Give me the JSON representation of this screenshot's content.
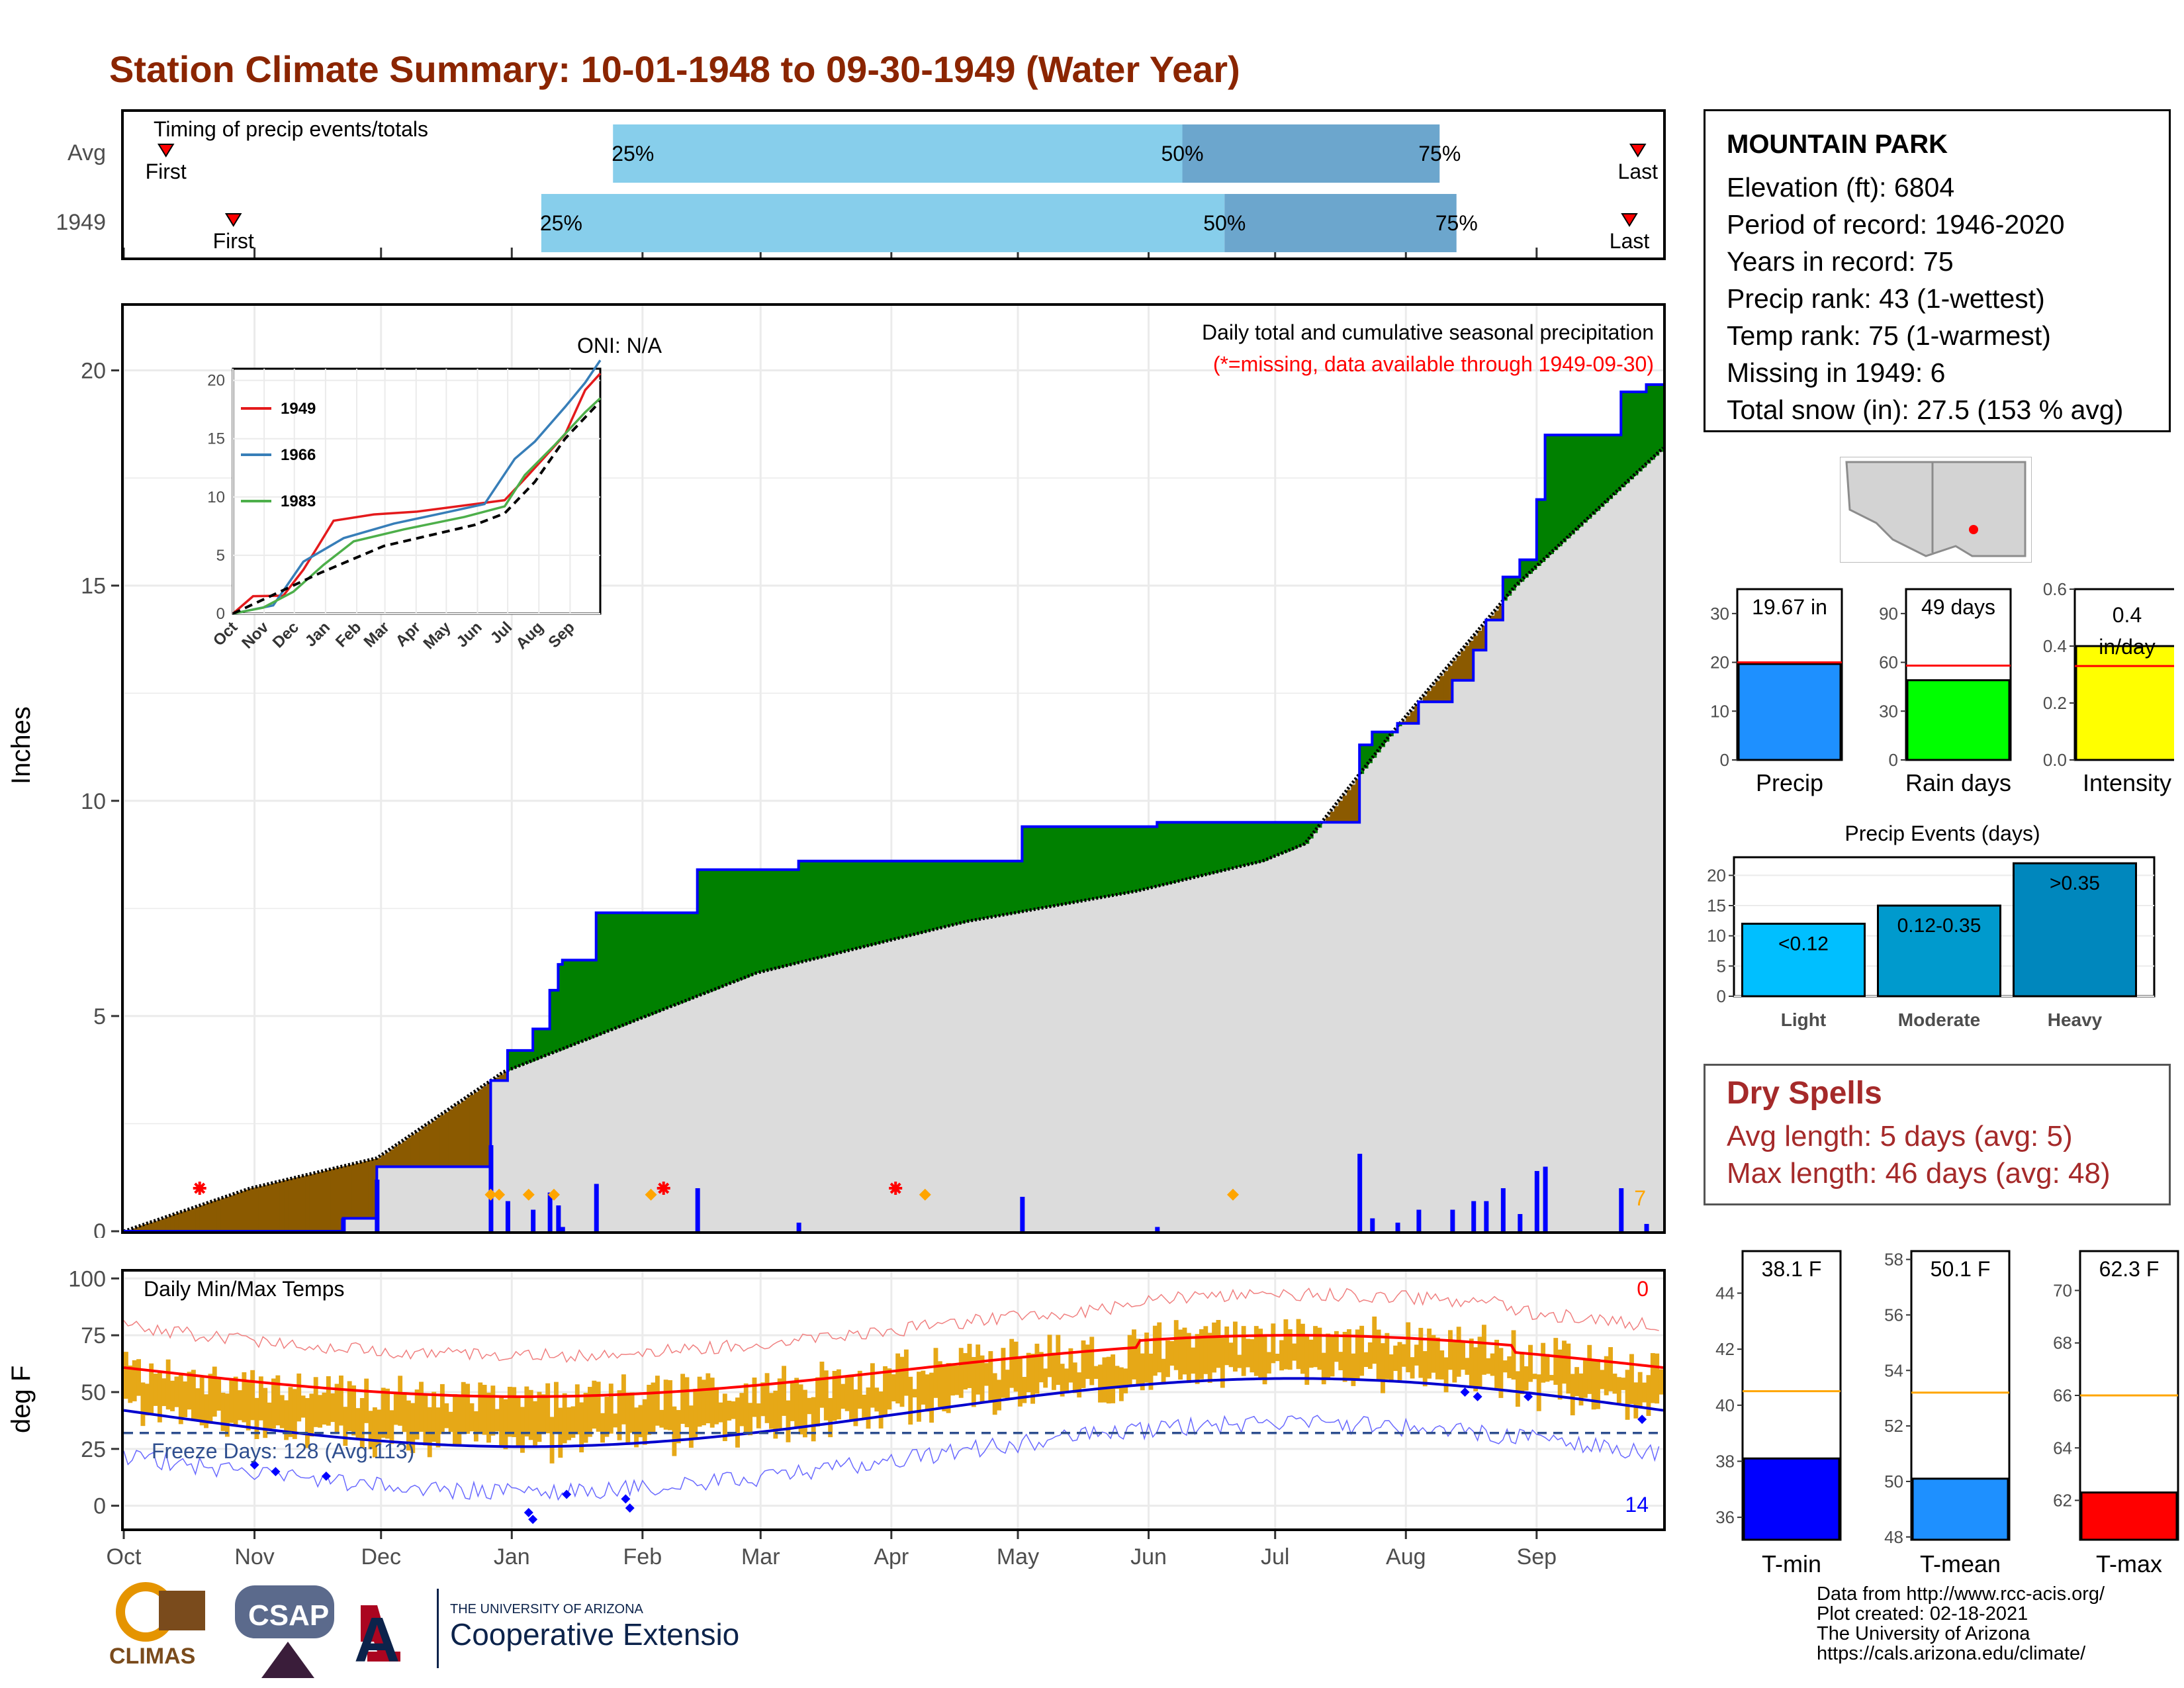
{
  "title": "Station Climate Summary: 10-01-1948 to 09-30-1949 (Water Year)",
  "timing": {
    "label": "Timing of precip events/totals",
    "rows": [
      {
        "name": "Avg",
        "first_doy": 10,
        "last_doy": 359,
        "p25_doy": 116,
        "p50_doy": 251,
        "p75_doy": 312
      },
      {
        "name": "1949",
        "first_doy": 26,
        "last_doy": 357,
        "p25_doy": 99,
        "p50_doy": 261,
        "p75_doy": 316
      }
    ],
    "first_label": "First",
    "last_label": "Last",
    "pct_labels": [
      "25%",
      "50%",
      "75%"
    ],
    "colors": {
      "light": "#87ceeb",
      "dark": "#6ca6cd",
      "marker": "#ff0000"
    }
  },
  "precip": {
    "oni_label": "ONI: N/A",
    "right_title": "Daily total and cumulative seasonal precipitation",
    "missing_note": "(*=missing, data available through 1949-09-30)",
    "y_label": "Inches",
    "missing_count": "7",
    "colors": {
      "surplus": "#008000",
      "deficit": "#8b5a00",
      "normal": "#dcdcdc",
      "line": "#0000ff",
      "missing": "#ff0000",
      "snow": "#ffa500"
    }
  },
  "temps": {
    "label": "Daily Min/Max Temps",
    "freeze_label": "Freeze Days: 128 (Avg:113)",
    "y_label": "deg F",
    "count_top": "0",
    "count_bottom": "14"
  },
  "month_labels": [
    "Oct",
    "Nov",
    "Dec",
    "Jan",
    "Feb",
    "Mar",
    "Apr",
    "May",
    "Jun",
    "Jul",
    "Aug",
    "Sep"
  ],
  "station": {
    "name": "MOUNTAIN PARK",
    "lines": [
      "Elevation (ft): 6804",
      "Period of record: 1946-2020",
      "Years in record: 75",
      "Precip rank: 43 (1-wettest)",
      "Temp rank: 75 (1-warmest)",
      "Missing in 1949: 6",
      "Total snow (in): 27.5 (153 % avg)"
    ]
  },
  "mini_bars": [
    {
      "label": "Precip",
      "value": 19.67,
      "avg": 20,
      "text": "19.67 in",
      "color": "#1e90ff",
      "ylim": [
        0,
        35
      ],
      "ticks": [
        "0",
        "10",
        "20",
        "30"
      ],
      "tickv": [
        0,
        10,
        20,
        30
      ]
    },
    {
      "label": "Rain days",
      "value": 49,
      "avg": 58,
      "text": "49 days",
      "color": "#00ff00",
      "ylim": [
        0,
        105
      ],
      "ticks": [
        "0",
        "30",
        "60",
        "90"
      ],
      "tickv": [
        0,
        30,
        60,
        90
      ]
    },
    {
      "label": "Intensity",
      "value": 0.4,
      "avg": 0.33,
      "text": "0.4 in/day",
      "color": "#ffff00",
      "ylim": [
        0,
        0.6
      ],
      "ticks": [
        "0.0",
        "0.2",
        "0.4",
        "0.6"
      ],
      "tickv": [
        0,
        0.2,
        0.4,
        0.6
      ]
    }
  ],
  "events": {
    "title": "Precip Events (days)",
    "categories": [
      "Light",
      "Moderate",
      "Heavy"
    ],
    "values": [
      12,
      15,
      22
    ],
    "labels": [
      "<0.12",
      "0.12-0.35",
      ">0.35"
    ],
    "colors": [
      "#00bfff",
      "#009acd",
      "#0087bd"
    ],
    "ticks": [
      "0",
      "5",
      "10",
      "15",
      "20"
    ],
    "tickv": [
      0,
      5,
      10,
      15,
      20
    ]
  },
  "dry_spells": {
    "title": "Dry Spells",
    "avg_line": "Avg length: 5 days (avg: 5)",
    "max_line": "Max length: 46 days (avg: 48)"
  },
  "temp_bars": [
    {
      "label": "T-min",
      "value": 38.1,
      "avg": 40.5,
      "text": "38.1 F",
      "color": "#0000ff",
      "ylim": [
        35.2,
        45.5
      ],
      "ticks": [
        "36",
        "38",
        "40",
        "42",
        "44"
      ],
      "tickv": [
        36,
        38,
        40,
        42,
        44
      ]
    },
    {
      "label": "T-mean",
      "value": 50.1,
      "avg": 53.2,
      "text": "50.1 F",
      "color": "#1e90ff",
      "ylim": [
        47.9,
        58.3
      ],
      "ticks": [
        "48",
        "50",
        "52",
        "54",
        "56",
        "58"
      ],
      "tickv": [
        48,
        50,
        52,
        54,
        56,
        58
      ]
    },
    {
      "label": "T-max",
      "value": 62.3,
      "avg": 66,
      "text": "62.3 F",
      "color": "#ff0000",
      "ylim": [
        60.5,
        71.5
      ],
      "ticks": [
        "62",
        "64",
        "66",
        "68",
        "70"
      ],
      "tickv": [
        62,
        64,
        66,
        68,
        70
      ]
    }
  ],
  "inset": {
    "series": [
      {
        "name": "1949",
        "color": "#e41a1c"
      },
      {
        "name": "1966",
        "color": "#377eb8"
      },
      {
        "name": "1983",
        "color": "#4daf4a"
      }
    ],
    "months": [
      "Oct",
      "Nov",
      "Dec",
      "Jan",
      "Feb",
      "Mar",
      "Apr",
      "May",
      "Jun",
      "Jul",
      "Aug",
      "Sep"
    ],
    "yticks": [
      "0",
      "5",
      "10",
      "15",
      "20"
    ]
  },
  "chart_data": {
    "type": "area",
    "title": "Daily total and cumulative seasonal precipitation",
    "ylabel": "Inches",
    "ylim": [
      0,
      21.5
    ],
    "x_categories": [
      "Oct",
      "Nov",
      "Dec",
      "Jan",
      "Feb",
      "Mar",
      "Apr",
      "May",
      "Jun",
      "Jul",
      "Aug",
      "Sep"
    ],
    "series": [
      {
        "name": "1949",
        "day_of_water_year": [
          0,
          52,
          60,
          86,
          87,
          91,
          97,
          101,
          103,
          104,
          112,
          128,
          136,
          157,
          160,
          184,
          213,
          245,
          280,
          293,
          296,
          302,
          307,
          315,
          320,
          323,
          327,
          331,
          335,
          337,
          355,
          361,
          364
        ],
        "cumulative_in": [
          0,
          0.3,
          1.5,
          1.5,
          3.5,
          4.2,
          4.7,
          5.6,
          6.2,
          6.3,
          7.4,
          7.4,
          8.4,
          8.4,
          8.6,
          8.6,
          9.4,
          9.5,
          9.5,
          11.3,
          11.6,
          11.8,
          12.3,
          12.8,
          13.5,
          14.2,
          15.2,
          15.6,
          17.0,
          18.5,
          19.5,
          19.67,
          19.67
        ]
      },
      {
        "name": "Average",
        "day_of_water_year": [
          0,
          30,
          60,
          87,
          90,
          150,
          200,
          240,
          270,
          280,
          300,
          330,
          365
        ],
        "cumulative_in": [
          0,
          1.0,
          1.7,
          3.5,
          3.7,
          6.0,
          7.2,
          7.9,
          8.6,
          9.0,
          11.5,
          15.0,
          18.2
        ]
      }
    ]
  }
}
